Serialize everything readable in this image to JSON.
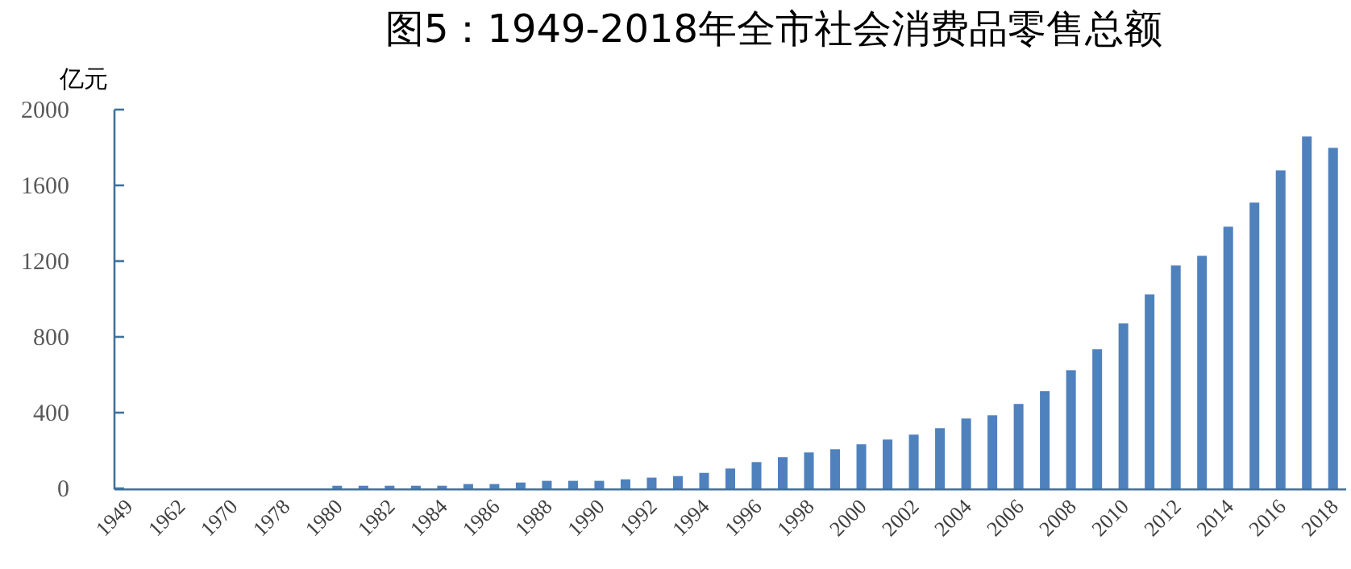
{
  "chart_data": {
    "type": "bar",
    "title": "图5：1949-2018年全市社会消费品零售总额",
    "ylabel": "亿元",
    "categories": [
      "1949",
      null,
      "1962",
      null,
      "1970",
      null,
      "1978",
      null,
      "1980",
      null,
      "1982",
      null,
      "1984",
      null,
      "1986",
      null,
      "1988",
      null,
      "1990",
      null,
      "1992",
      null,
      "1994",
      null,
      "1996",
      null,
      "1998",
      null,
      "2000",
      null,
      "2002",
      null,
      "2004",
      null,
      "2006",
      null,
      "2008",
      null,
      "2010",
      null,
      "2012",
      null,
      "2014",
      null,
      "2016",
      null,
      "2018"
    ],
    "values": [
      0,
      0,
      0,
      0,
      0,
      0,
      0,
      0,
      14,
      14,
      14,
      14,
      14,
      23,
      23,
      31,
      40,
      40,
      40,
      48,
      57,
      65,
      82,
      105,
      139,
      165,
      190,
      207,
      233,
      258,
      284,
      318,
      369,
      386,
      446,
      514,
      624,
      735,
      871,
      1024,
      1177,
      1228,
      1382,
      1509,
      1679,
      1858,
      1798
    ],
    "color": "#4f81bd",
    "ylim": [
      0,
      2000
    ],
    "yticks": [
      0,
      400,
      800,
      1200,
      1600,
      2000
    ],
    "grid": false
  }
}
